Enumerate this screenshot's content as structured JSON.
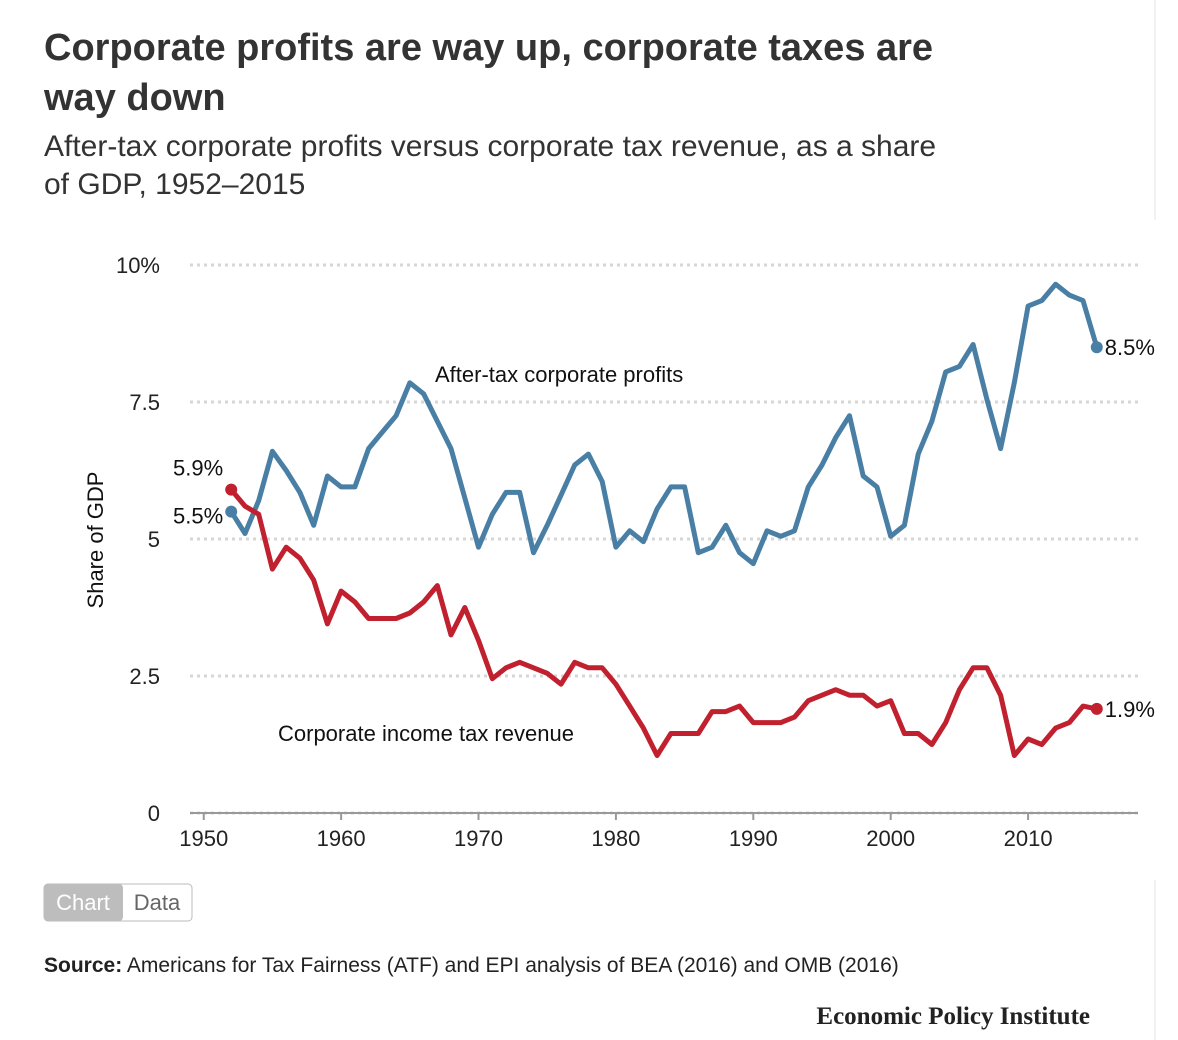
{
  "chart_data": {
    "type": "line",
    "title": "Corporate profits are way up, corporate taxes are way down",
    "subtitle": "After-tax corporate profits versus corporate tax revenue, as a share of GDP, 1952–2015",
    "y_label": "Share of GDP",
    "x": [
      1952,
      1953,
      1954,
      1955,
      1956,
      1957,
      1958,
      1959,
      1960,
      1961,
      1962,
      1963,
      1964,
      1965,
      1966,
      1967,
      1968,
      1969,
      1970,
      1971,
      1972,
      1973,
      1974,
      1975,
      1976,
      1977,
      1978,
      1979,
      1980,
      1981,
      1982,
      1983,
      1984,
      1985,
      1986,
      1987,
      1988,
      1989,
      1990,
      1991,
      1992,
      1993,
      1994,
      1995,
      1996,
      1997,
      1998,
      1999,
      2000,
      2001,
      2002,
      2003,
      2004,
      2005,
      2006,
      2007,
      2008,
      2009,
      2010,
      2011,
      2012,
      2013,
      2014,
      2015
    ],
    "series": [
      {
        "name": "After-tax corporate profits",
        "color": "#4a7fa5",
        "values": [
          5.5,
          5.1,
          5.7,
          6.6,
          6.25,
          5.85,
          5.25,
          6.15,
          5.95,
          5.95,
          6.65,
          6.95,
          7.25,
          7.85,
          7.65,
          7.15,
          6.65,
          5.75,
          4.85,
          5.45,
          5.85,
          5.85,
          4.75,
          5.25,
          5.8,
          6.35,
          6.55,
          6.05,
          4.85,
          5.15,
          4.95,
          5.55,
          5.95,
          5.95,
          4.75,
          4.85,
          5.25,
          4.75,
          4.55,
          5.15,
          5.05,
          5.15,
          5.95,
          6.35,
          6.85,
          7.25,
          6.15,
          5.95,
          5.05,
          5.25,
          6.55,
          7.15,
          8.05,
          8.15,
          8.55,
          7.55,
          6.65,
          7.85,
          9.25,
          9.35,
          9.65,
          9.45,
          9.35,
          8.5
        ],
        "value_labels": [
          "5.5%",
          null,
          null,
          null,
          null,
          null,
          null,
          null,
          null,
          null,
          null,
          null,
          null,
          null,
          null,
          null,
          null,
          null,
          null,
          null,
          null,
          null,
          null,
          null,
          null,
          null,
          null,
          null,
          null,
          null,
          null,
          null,
          null,
          null,
          null,
          null,
          null,
          null,
          null,
          null,
          null,
          null,
          null,
          null,
          null,
          null,
          null,
          null,
          null,
          null,
          null,
          null,
          null,
          null,
          null,
          null,
          null,
          null,
          null,
          null,
          null,
          null,
          null,
          "8.5%"
        ]
      },
      {
        "name": "Corporate income tax revenue",
        "color": "#c1202f",
        "values": [
          5.9,
          5.6,
          5.45,
          4.45,
          4.85,
          4.65,
          4.25,
          3.45,
          4.05,
          3.85,
          3.55,
          3.55,
          3.55,
          3.65,
          3.85,
          4.15,
          3.25,
          3.75,
          3.15,
          2.45,
          2.65,
          2.75,
          2.65,
          2.55,
          2.35,
          2.75,
          2.65,
          2.65,
          2.35,
          1.95,
          1.55,
          1.05,
          1.45,
          1.45,
          1.45,
          1.85,
          1.85,
          1.95,
          1.65,
          1.65,
          1.65,
          1.75,
          2.05,
          2.15,
          2.25,
          2.15,
          2.15,
          1.95,
          2.05,
          1.45,
          1.45,
          1.25,
          1.65,
          2.25,
          2.65,
          2.65,
          2.15,
          1.05,
          1.35,
          1.25,
          1.55,
          1.65,
          1.95,
          1.9
        ],
        "value_labels": [
          "5.9%",
          null,
          null,
          null,
          null,
          null,
          null,
          null,
          null,
          null,
          null,
          null,
          null,
          null,
          null,
          null,
          null,
          null,
          null,
          null,
          null,
          null,
          null,
          null,
          null,
          null,
          null,
          null,
          null,
          null,
          null,
          null,
          null,
          null,
          null,
          null,
          null,
          null,
          null,
          null,
          null,
          null,
          null,
          null,
          null,
          null,
          null,
          null,
          null,
          null,
          null,
          null,
          null,
          null,
          null,
          null,
          null,
          null,
          null,
          null,
          null,
          null,
          null,
          "1.9%"
        ]
      }
    ],
    "xlim": [
      1949,
      2018
    ],
    "xticks": [
      1950,
      1960,
      1970,
      1980,
      1990,
      2000,
      2010
    ],
    "ylim": [
      0,
      10
    ],
    "yticks": [
      0,
      2.5,
      5,
      7.5,
      {
        "value": 10,
        "label": "10%"
      }
    ],
    "grid": true
  },
  "page": {
    "tabs": [
      "Chart",
      "Data"
    ],
    "source_label": "Source:",
    "source_text": "Americans for Tax Fairness (ATF) and EPI analysis of BEA (2016) and OMB (2016)",
    "publisher": "Economic Policy Institute"
  }
}
